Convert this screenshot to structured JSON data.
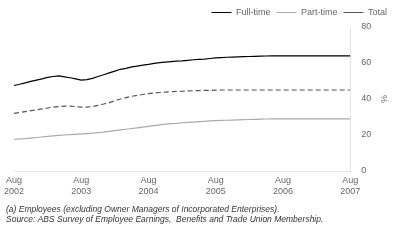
{
  "chart_data": {
    "type": "line",
    "ylabel": "%",
    "categories": [
      "Aug\n2002",
      null,
      null,
      null,
      null,
      null,
      null,
      null,
      null,
      null,
      null,
      null,
      "Aug\n2003",
      null,
      null,
      null,
      null,
      null,
      null,
      null,
      null,
      null,
      null,
      null,
      "Aug\n2004",
      null,
      null,
      null,
      null,
      null,
      null,
      null,
      null,
      null,
      null,
      null,
      "Aug\n2005",
      null,
      null,
      null,
      null,
      null,
      null,
      null,
      null,
      null,
      null,
      null,
      "Aug\n2006",
      null,
      null,
      null,
      null,
      null,
      null,
      null,
      null,
      null,
      null,
      null,
      "Aug\n2007"
    ],
    "series": [
      {
        "name": "Full-time",
        "color": "#000000",
        "line_style": "solid",
        "values": [
          47.5,
          48.2,
          49.0,
          49.8,
          50.5,
          51.2,
          52.0,
          52.5,
          52.8,
          52.3,
          51.8,
          51.2,
          50.5,
          50.8,
          51.5,
          52.5,
          53.5,
          54.5,
          55.5,
          56.5,
          57.0,
          57.8,
          58.3,
          58.8,
          59.2,
          59.8,
          60.2,
          60.5,
          60.8,
          61.0,
          61.2,
          61.5,
          61.8,
          62.0,
          62.2,
          62.5,
          62.8,
          63.0,
          63.2,
          63.3,
          63.4,
          63.5,
          63.6,
          63.7,
          63.8,
          63.9,
          64.0,
          64.0,
          64.0,
          64.0,
          64.0,
          64.0,
          64.0,
          64.0,
          64.0,
          64.0,
          64.0,
          64.0,
          64.0,
          64.0,
          64.0
        ]
      },
      {
        "name": "Part-time",
        "color": "#aaaaaa",
        "line_style": "solid",
        "values": [
          17.5,
          17.8,
          18.0,
          18.3,
          18.6,
          18.9,
          19.2,
          19.5,
          19.8,
          20.0,
          20.2,
          20.4,
          20.6,
          20.8,
          21.0,
          21.3,
          21.6,
          22.0,
          22.4,
          22.8,
          23.2,
          23.6,
          24.0,
          24.4,
          24.8,
          25.2,
          25.6,
          26.0,
          26.3,
          26.5,
          26.8,
          27.0,
          27.2,
          27.4,
          27.6,
          27.8,
          28.0,
          28.1,
          28.2,
          28.3,
          28.4,
          28.5,
          28.6,
          28.7,
          28.8,
          28.9,
          29.0,
          29.0,
          29.0,
          29.0,
          29.0,
          29.0,
          29.0,
          29.0,
          29.0,
          29.0,
          29.0,
          29.0,
          29.0,
          29.0,
          29.0
        ]
      },
      {
        "name": "Total",
        "color": "#555555",
        "line_style": "dashed",
        "values": [
          32.0,
          32.5,
          33.0,
          33.5,
          34.0,
          34.5,
          35.0,
          35.5,
          35.8,
          36.0,
          36.0,
          35.8,
          35.5,
          35.5,
          35.8,
          36.5,
          37.2,
          38.0,
          39.0,
          40.0,
          40.8,
          41.5,
          42.0,
          42.5,
          43.0,
          43.3,
          43.6,
          43.8,
          44.0,
          44.2,
          44.3,
          44.5,
          44.6,
          44.7,
          44.8,
          44.8,
          44.9,
          45.0,
          45.0,
          45.0,
          45.0,
          45.0,
          45.0,
          45.0,
          45.0,
          45.0,
          45.0,
          45.0,
          45.0,
          45.0,
          45.0,
          45.0,
          45.0,
          45.0,
          45.0,
          45.0,
          45.0,
          45.0,
          45.0,
          45.0,
          45.0
        ]
      }
    ],
    "ylim": [
      0,
      80
    ],
    "yticks": [
      0,
      20,
      40,
      60,
      80
    ],
    "grid": false,
    "legend": "upper right",
    "annotations": [
      "(a) Employees (excluding Owner Managers of Incorporated Enterprises).",
      "Source: ABS Survey of Employee Earnings,  Benefits and Trade Union Membership."
    ]
  }
}
